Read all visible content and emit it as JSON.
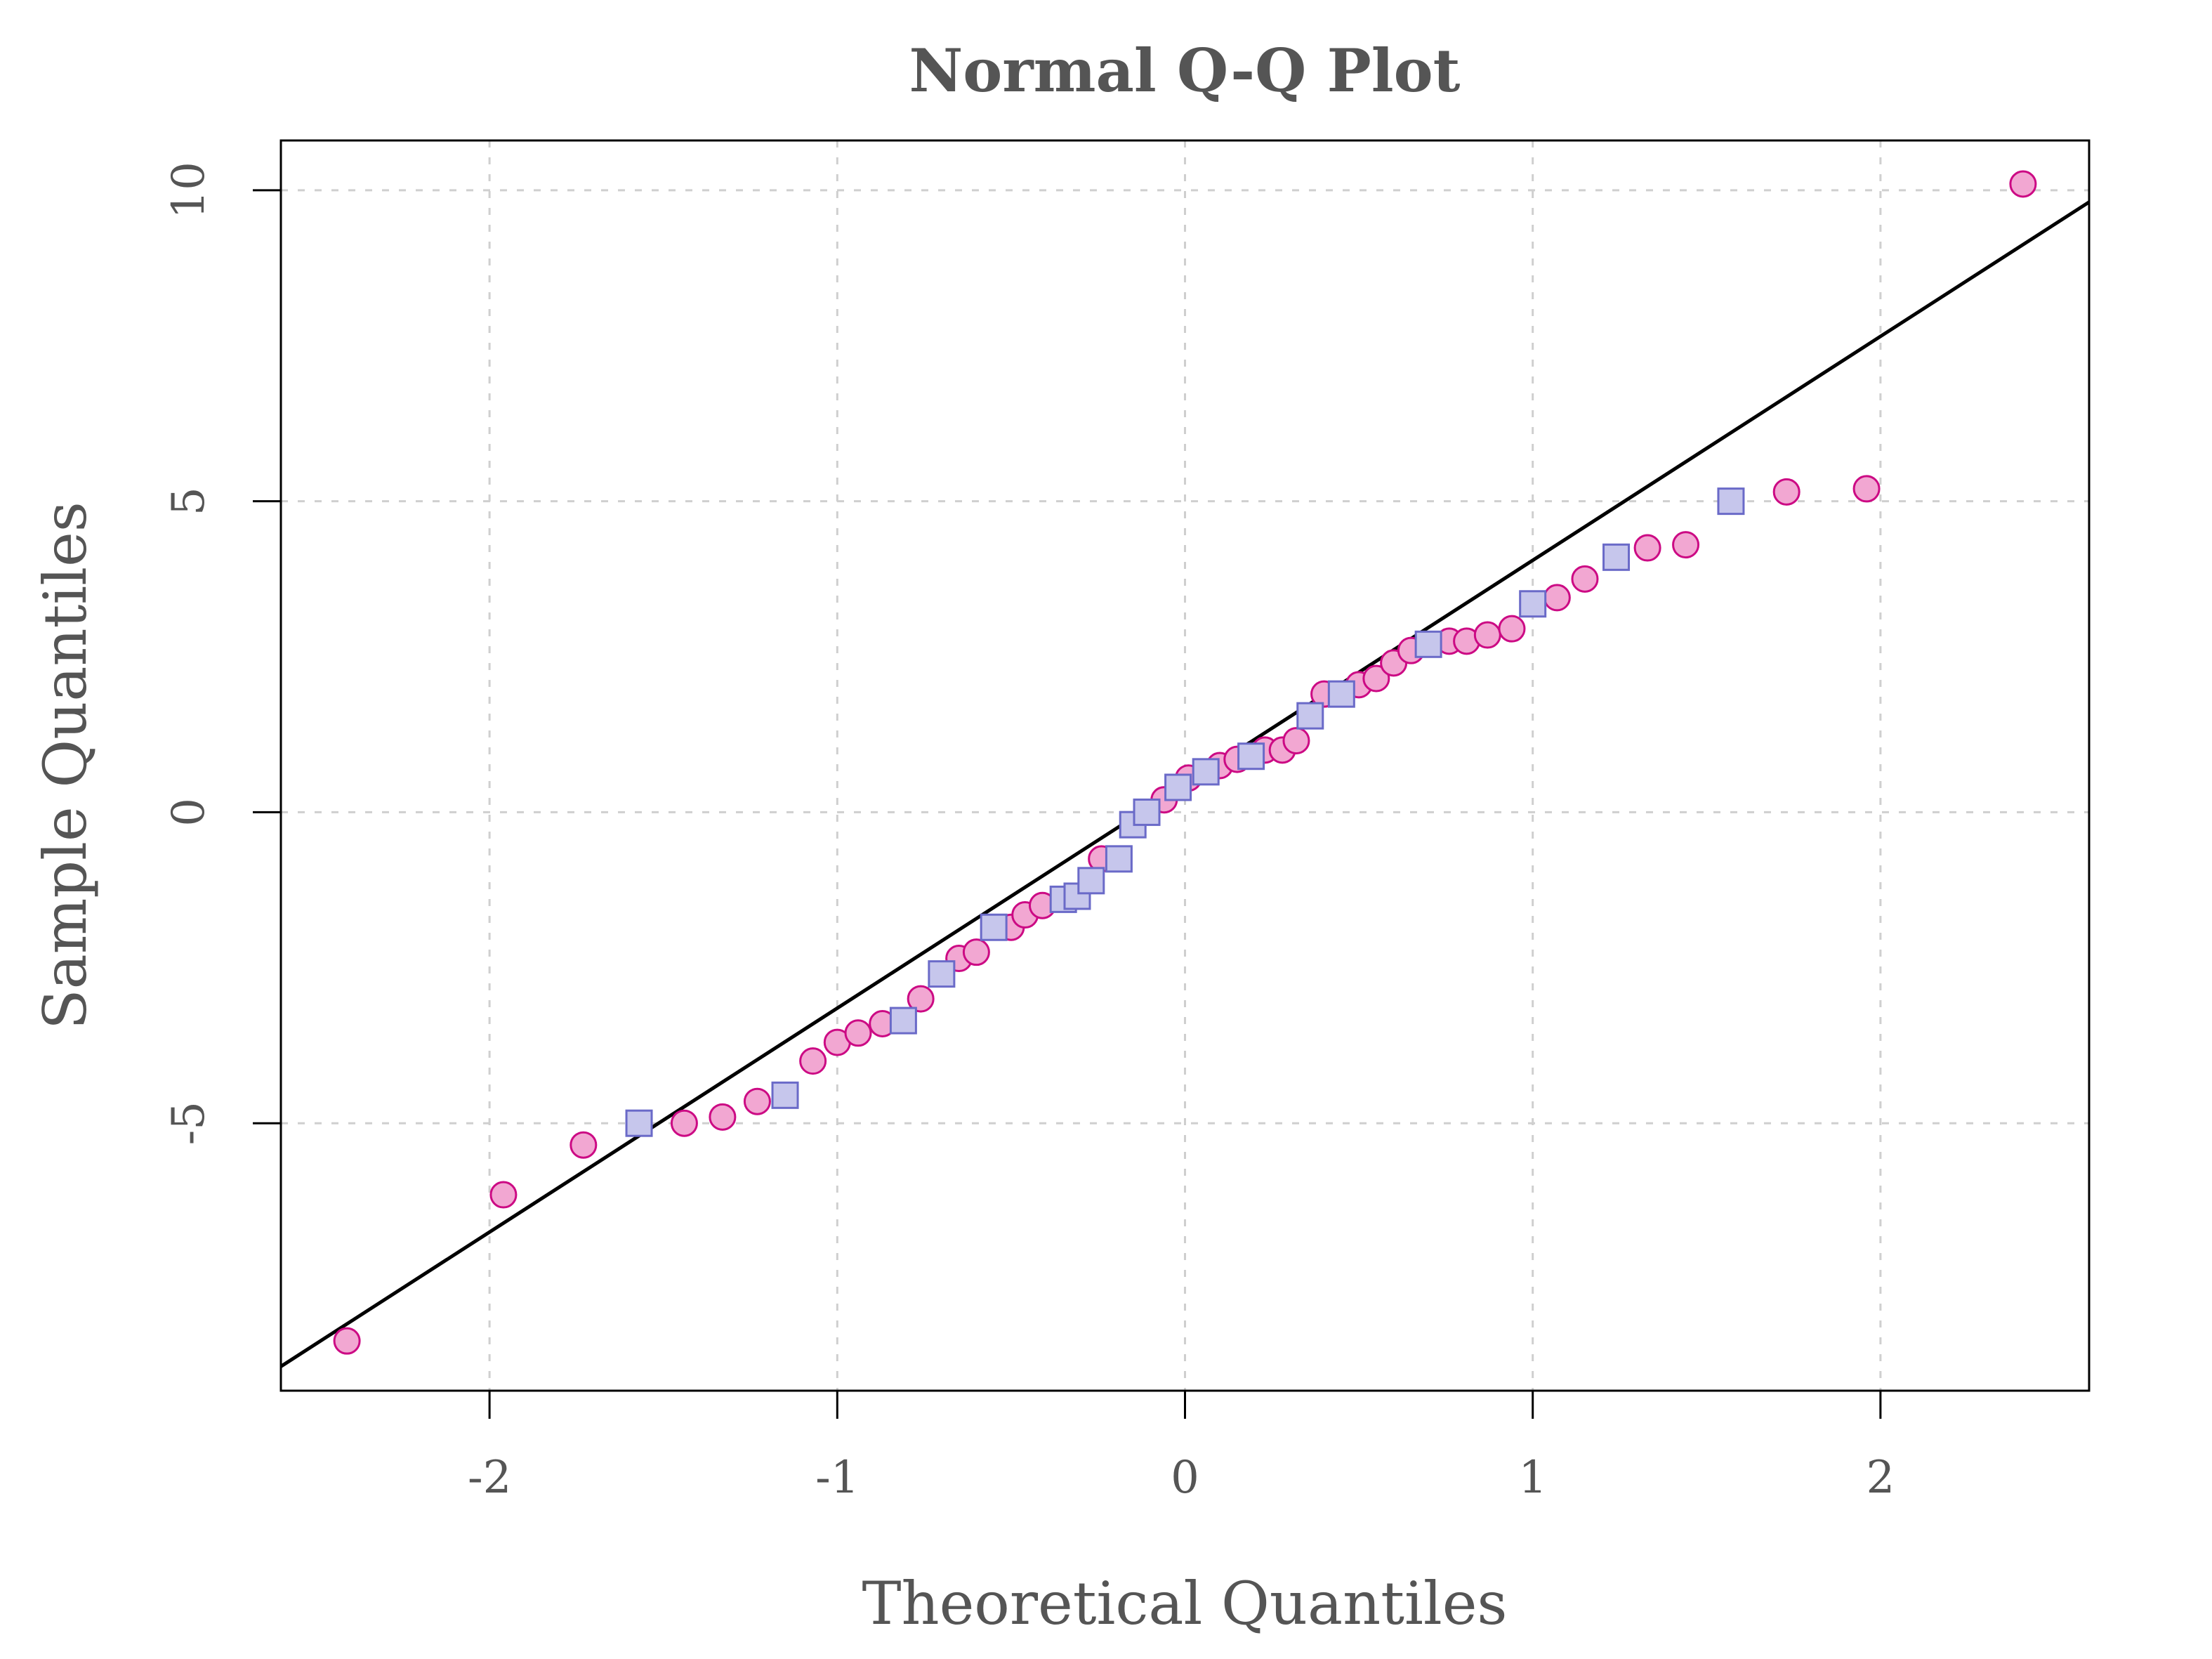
{
  "chart_data": {
    "type": "scatter",
    "title": "Normal Q-Q Plot",
    "xlabel": "Theoretical Quantiles",
    "ylabel": "Sample Quantiles",
    "xlim": [
      -2.6,
      2.6
    ],
    "ylim": [
      -9.3,
      10.8
    ],
    "x_ticks": [
      -2,
      -1,
      0,
      1,
      2
    ],
    "x_tick_labels": [
      "-2",
      "-1",
      "0",
      "1",
      "2"
    ],
    "y_ticks": [
      -5,
      0,
      5,
      10
    ],
    "y_tick_labels": [
      "-5",
      "0",
      "5",
      "10"
    ],
    "grid": true,
    "colors": {
      "circle_fill": "#f2a7d2",
      "circle_stroke": "#cc0a84",
      "square_fill": "#c6c6ec",
      "square_stroke": "#6a6ac8",
      "line": "#000000",
      "text": "#555555"
    },
    "reference_line": {
      "slope": 3.6,
      "intercept": 0.45
    },
    "series": [
      {
        "marker": "circle",
        "x": [
          -2.41,
          -1.96,
          -1.73,
          -1.44,
          -1.33,
          -1.23,
          -1.07,
          -1.0,
          -0.94,
          -0.87,
          -0.76,
          -0.65,
          -0.6,
          -0.5,
          -0.46,
          -0.41,
          -0.24,
          -0.06,
          0.01,
          0.1,
          0.15,
          0.23,
          0.28,
          0.32,
          0.4,
          0.5,
          0.55,
          0.6,
          0.65,
          0.76,
          0.81,
          0.87,
          0.94,
          1.07,
          1.15,
          1.33,
          1.44,
          1.73,
          1.96,
          2.41
        ],
        "y": [
          -8.5,
          -6.15,
          -5.35,
          -5.0,
          -4.9,
          -4.65,
          -4.0,
          -3.7,
          -3.55,
          -3.4,
          -3.0,
          -2.35,
          -2.25,
          -1.85,
          -1.65,
          -1.5,
          -0.75,
          0.2,
          0.55,
          0.75,
          0.85,
          1.0,
          1.0,
          1.15,
          1.9,
          2.05,
          2.15,
          2.4,
          2.6,
          2.75,
          2.75,
          2.85,
          2.95,
          3.45,
          3.75,
          4.25,
          4.3,
          5.15,
          5.2,
          10.1
        ]
      },
      {
        "marker": "square",
        "x": [
          -1.57,
          -1.15,
          -0.81,
          -0.7,
          -0.55,
          -0.35,
          -0.31,
          -0.27,
          -0.19,
          -0.15,
          -0.11,
          -0.02,
          0.06,
          0.19,
          0.36,
          0.45,
          0.7,
          1.0,
          1.24,
          1.57
        ],
        "y": [
          -5.0,
          -4.55,
          -3.35,
          -2.6,
          -1.85,
          -1.4,
          -1.35,
          -1.1,
          -0.75,
          -0.2,
          0.0,
          0.4,
          0.65,
          0.9,
          1.55,
          1.9,
          2.7,
          3.35,
          4.1,
          5.0
        ]
      }
    ]
  }
}
